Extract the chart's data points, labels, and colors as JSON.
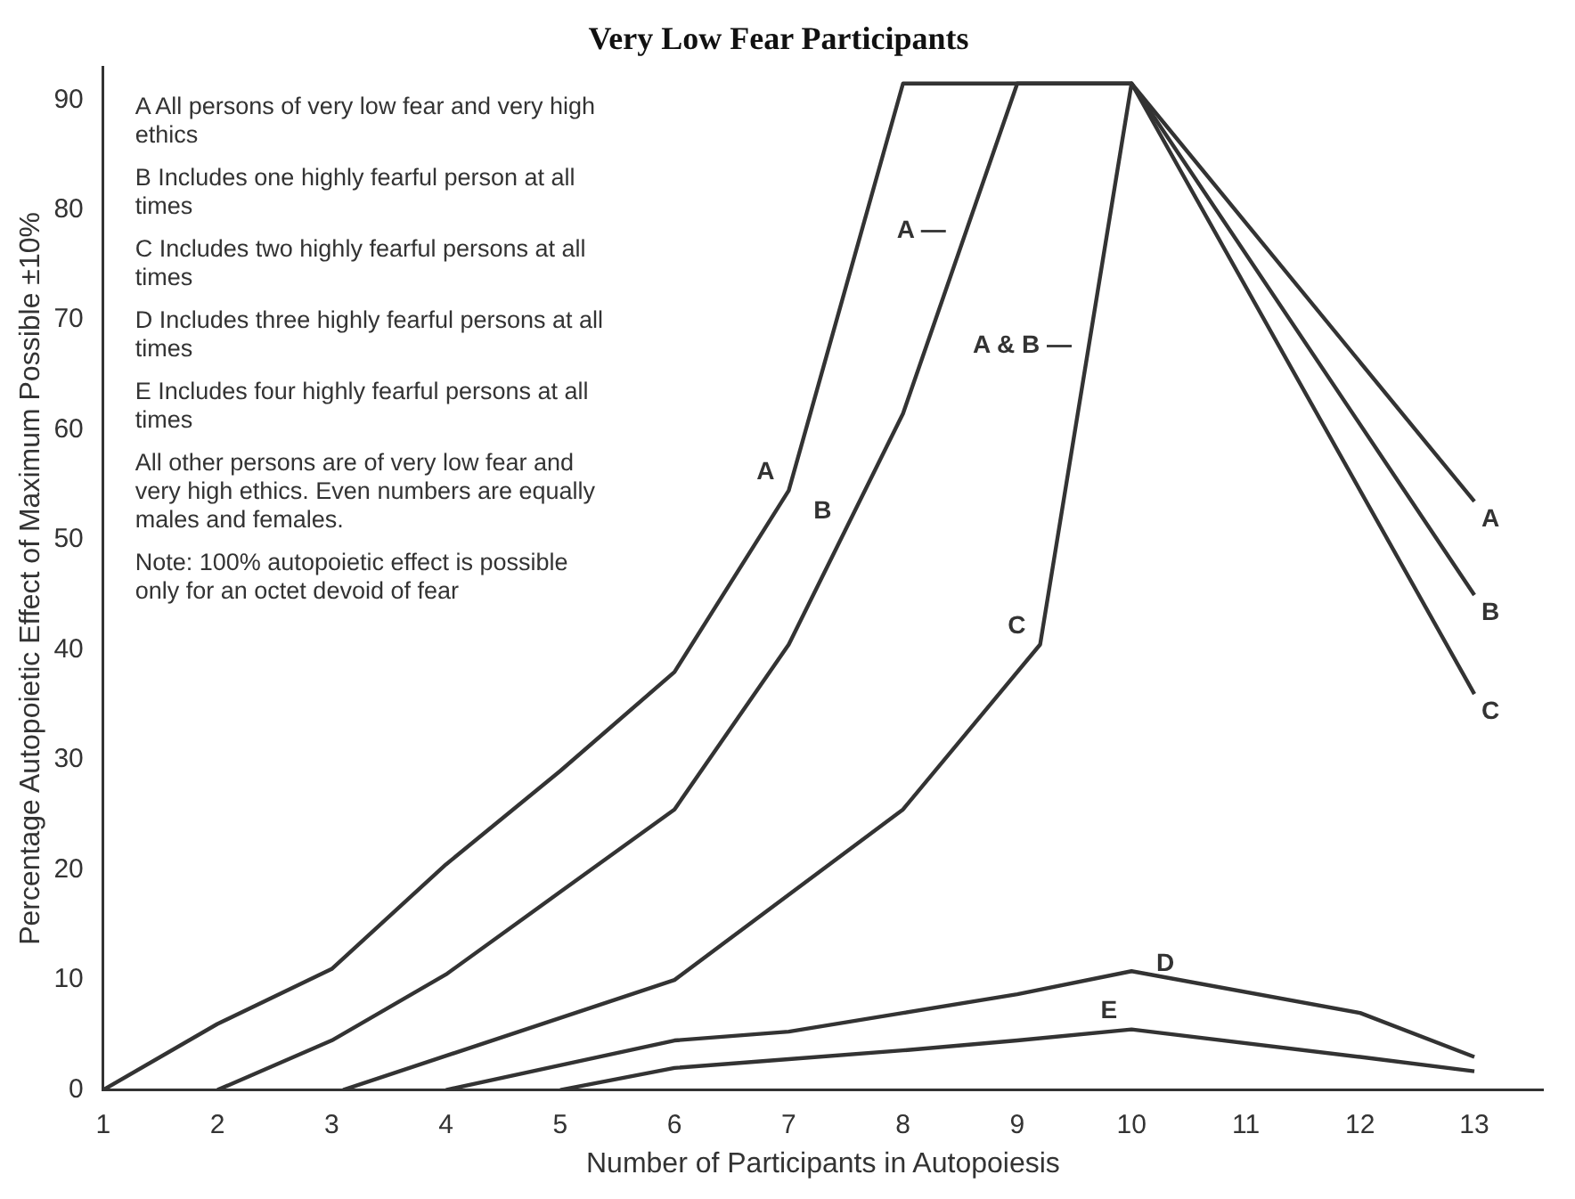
{
  "chart_data": {
    "type": "line",
    "title": "Very Low Fear Participants",
    "xlabel": "Number of Participants in Autopoiesis",
    "ylabel": "Percentage Autopoietic Effect of Maximum Possible ±10%",
    "xlim": [
      1,
      13.6
    ],
    "xticks": [
      1,
      2,
      3,
      4,
      5,
      6,
      7,
      8,
      9,
      10,
      11,
      12,
      13
    ],
    "ylim": [
      0,
      93
    ],
    "yticks": [
      0,
      10,
      20,
      30,
      40,
      50,
      60,
      70,
      80,
      90
    ],
    "grid": false,
    "legend": false,
    "marker": "none",
    "line_style": "solid",
    "series": [
      {
        "color": "#333333",
        "x": [
          1,
          2,
          3,
          4,
          5,
          6,
          7,
          8,
          10,
          13
        ],
        "values": [
          0,
          6,
          11,
          20.5,
          29,
          38,
          54.5,
          91.5,
          91.5,
          53.5
        ]
      },
      {
        "color": "#333333",
        "x": [
          2,
          3,
          4,
          5,
          6,
          7,
          8,
          9,
          10,
          13
        ],
        "values": [
          0,
          4.5,
          10.5,
          18,
          25.5,
          40.5,
          61.5,
          91.5,
          91.5,
          45
        ]
      },
      {
        "color": "#333333",
        "x": [
          3.1,
          6,
          8,
          9.2,
          10,
          13
        ],
        "values": [
          0,
          10,
          25.5,
          40.5,
          91.5,
          36
        ]
      },
      {
        "color": "#333333",
        "x": [
          4,
          6,
          7,
          8,
          9,
          10,
          12,
          13
        ],
        "values": [
          0,
          4.5,
          5.3,
          7,
          8.7,
          10.8,
          7,
          3
        ]
      },
      {
        "color": "#333333",
        "x": [
          5,
          6,
          7,
          8,
          9,
          10,
          12,
          13
        ],
        "values": [
          0,
          2,
          2.8,
          3.6,
          4.5,
          5.5,
          3,
          1.7
        ]
      }
    ],
    "annotations": [
      "A All persons of very low fear and very high ethics",
      "B Includes one highly fearful person at all times",
      "C Includes two highly fearful persons at all times",
      "D Includes three highly fearful persons at all times",
      "E Includes four highly fearful persons at all times",
      "All other persons are of very low fear and very high ethics. Even numbers are equally males and females.",
      "Note: 100% autopoietic effect is possible only for an octet devoid of fear",
      {
        "text": "A",
        "x": 7,
        "y": 54.5
      },
      {
        "text": "B",
        "x": 7.5,
        "y": 51
      },
      {
        "text": "C",
        "x": 9.2,
        "y": 40.5
      },
      {
        "text": "D",
        "x": 10.5,
        "y": 9.85
      },
      {
        "text": "E",
        "x": 10,
        "y": 5.5
      },
      {
        "text": "A",
        "x": 13,
        "y": 53.5
      },
      {
        "text": "B",
        "x": 13,
        "y": 45
      },
      {
        "text": "C",
        "x": 13,
        "y": 36
      },
      {
        "text": "A —",
        "x": 8.5,
        "y": 76.5
      },
      {
        "text": "A & B —",
        "x": 9.6,
        "y": 66
      }
    ]
  }
}
